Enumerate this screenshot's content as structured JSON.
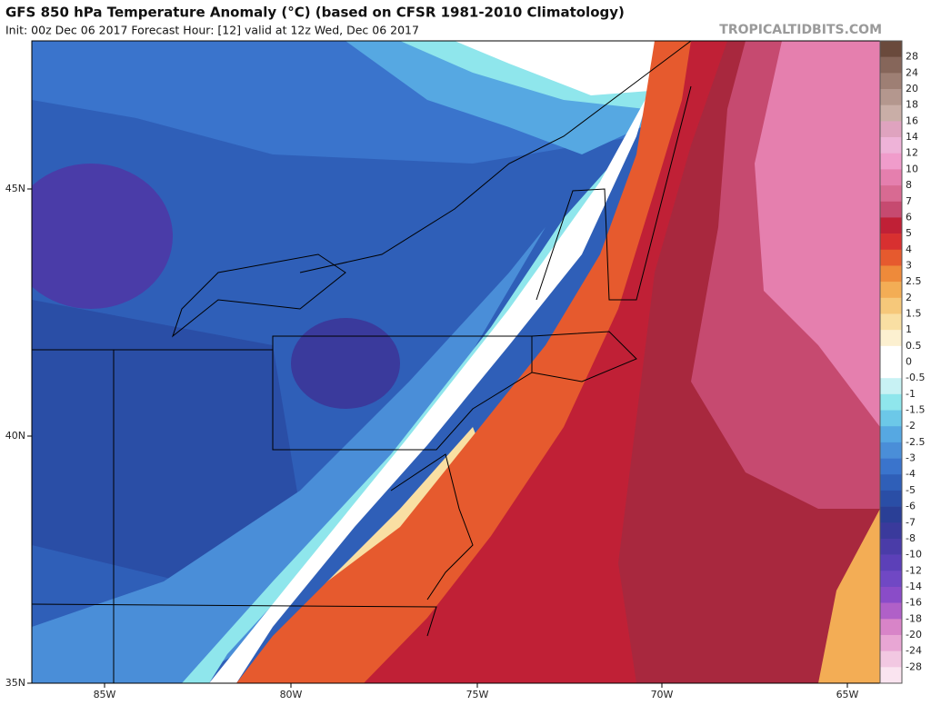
{
  "header": {
    "title": "GFS 850 hPa Temperature Anomaly (°C) (based on CFSR 1981-2010 Climatology)",
    "subtitle": "Init: 00z Dec 06 2017   Forecast Hour: [12]   valid at 12z Wed, Dec 06 2017",
    "brand": "TROPICALTIDBITS.COM"
  },
  "colorbar": {
    "labels": [
      "28",
      "24",
      "20",
      "18",
      "16",
      "14",
      "12",
      "10",
      "8",
      "7",
      "6",
      "5",
      "4",
      "3",
      "2.5",
      "2",
      "1.5",
      "1",
      "0.5",
      "0",
      "-0.5",
      "-1",
      "-1.5",
      "-2",
      "-2.5",
      "-3",
      "-4",
      "-5",
      "-6",
      "-7",
      "-8",
      "-10",
      "-12",
      "-14",
      "-16",
      "-18",
      "-20",
      "-24",
      "-28"
    ],
    "colors": [
      "#6a4a3c",
      "#86665a",
      "#9e7f74",
      "#b4978e",
      "#c9aea7",
      "#dfa3bf",
      "#eeb3d8",
      "#f09ccb",
      "#e57fae",
      "#d86a92",
      "#c64a70",
      "#c02036",
      "#d83030",
      "#e65a2e",
      "#ee8a3a",
      "#f3ad55",
      "#f6c87a",
      "#f9dfa3",
      "#fcf0d0",
      "#ffffff",
      "#ffffff",
      "#c8f2f4",
      "#8fe6ec",
      "#6cc8e8",
      "#56a8e2",
      "#4a8ed8",
      "#3a74cc",
      "#2f5fb8",
      "#2a4ea6",
      "#2a3f96",
      "#3a3a9c",
      "#4a3ca8",
      "#5c40b8",
      "#7048c4",
      "#8a4cc8",
      "#b060c8",
      "#d884c8",
      "#e8a6d4",
      "#f2c8e2",
      "#fae4f0"
    ]
  },
  "axes": {
    "lat_labels": [
      "45N",
      "40N",
      "35N"
    ],
    "lon_labels": [
      "85W",
      "80W",
      "75W",
      "70W",
      "65W"
    ]
  }
}
